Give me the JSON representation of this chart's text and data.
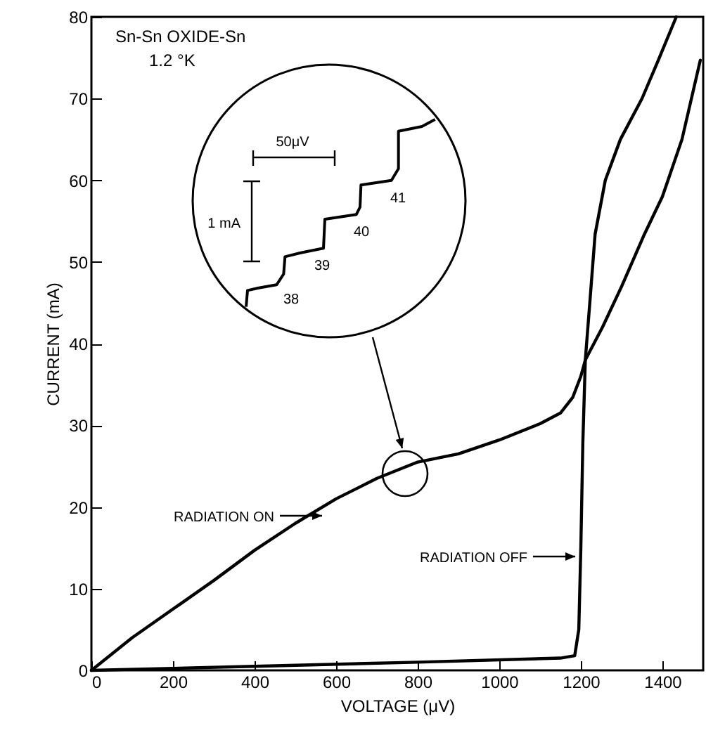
{
  "chart_data": {
    "type": "line",
    "title": "Sn-Sn OXIDE-Sn",
    "subtitle": "1.2 °K",
    "xlabel": "VOLTAGE (μV)",
    "ylabel": "CURRENT (mA)",
    "xlim": [
      0,
      1500
    ],
    "ylim": [
      0,
      80
    ],
    "xticks": [
      0,
      200,
      400,
      600,
      800,
      1000,
      1200,
      1400
    ],
    "yticks": [
      0,
      10,
      20,
      30,
      40,
      50,
      60,
      70,
      80
    ],
    "grid": false,
    "marker": "none",
    "line_style": "solid",
    "series": [
      {
        "color": "#000000",
        "x": [
          0,
          100,
          200,
          300,
          400,
          500,
          600,
          700,
          800,
          900,
          1000,
          1100,
          1150,
          1180,
          1200,
          1211,
          1253,
          1300,
          1356,
          1400,
          1448,
          1493
        ],
        "values": [
          0,
          4,
          7.5,
          11,
          14.7,
          18,
          21,
          23.5,
          25.5,
          26.5,
          28.2,
          30.2,
          31.5,
          33.4,
          36,
          38,
          42,
          47,
          53.4,
          58,
          65,
          74.7
        ]
      },
      {
        "color": "#000000",
        "x": [
          0,
          400,
          800,
          1150,
          1185,
          1195,
          1200,
          1205,
          1211,
          1222,
          1235,
          1260,
          1297,
          1350,
          1390,
          1434
        ],
        "values": [
          0,
          0.5,
          1,
          1.5,
          1.8,
          5,
          15,
          28,
          38,
          45,
          53.4,
          60,
          65,
          70,
          74.7,
          80
        ]
      }
    ],
    "annotations": [
      "RADIATION ON",
      "RADIATION OFF",
      "50μV",
      "1 mA",
      "38",
      "39",
      "40",
      "41"
    ]
  }
}
